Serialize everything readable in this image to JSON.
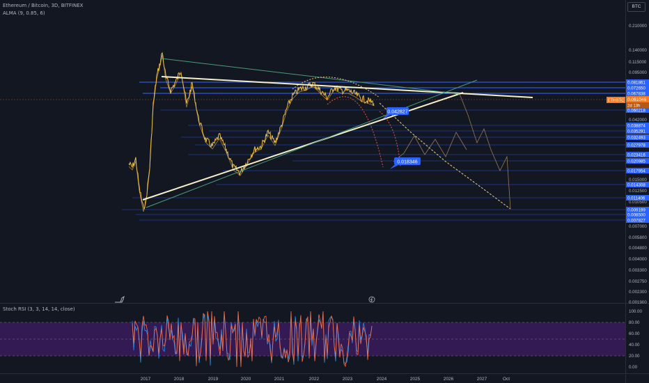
{
  "header": {
    "symbol_title": "Ethereum / Bitcoin, 3D, BITFINEX",
    "alma": "ALMA (9, 0.85, 6)",
    "stoch_label": "Stoch RSI (3, 3, 14, 14, close)",
    "currency_button": "BTC"
  },
  "price_axis": {
    "ticks": [
      "0.210000",
      "0.140000",
      "0.115000",
      "0.095000",
      "0.042000",
      "0.015000",
      "0.012500",
      "0.010500",
      "0.007000",
      "0.005800",
      "0.004800",
      "0.004000",
      "0.003300",
      "0.002750",
      "0.002300",
      "0.001900"
    ],
    "levels": [
      "0.081861",
      "0.072650",
      "0.067838",
      "0.060218",
      "0.038874",
      "0.035291",
      "0.032493",
      "0.027978",
      "0.023416",
      "0.020985",
      "0.017954",
      "0.014308",
      "0.011406",
      "0.009199",
      "0.008500",
      "0.007827"
    ],
    "current_symbol": "ETHBTC",
    "current_price": "0.061046",
    "countdown": "2d 13h",
    "callout_high": "0.042827",
    "callout_low": "0.018346"
  },
  "rsi_axis": {
    "ticks": [
      "100.00",
      "80.00",
      "60.00",
      "40.00",
      "20.00",
      "0.00"
    ]
  },
  "time_axis": {
    "labels": [
      "2017",
      "2018",
      "2019",
      "2020",
      "2021",
      "2022",
      "2023",
      "2024",
      "2025",
      "2026",
      "2027",
      "Oct"
    ]
  },
  "colors": {
    "background": "#131722",
    "price_line": "#f0c040",
    "trendline": "#f5f0c8",
    "horizontal": "#2962ff",
    "current": "#f57c20",
    "rsi_band": "#5b1f8f",
    "rsi_k": "#2196f3",
    "rsi_d": "#ff7043",
    "projection_arc": "#e05a4a",
    "projection_dash": "#e8d080",
    "badge_blue": "#2962ff"
  },
  "icons": {
    "logo": "bird-icon",
    "event": "lightning-icon"
  }
}
